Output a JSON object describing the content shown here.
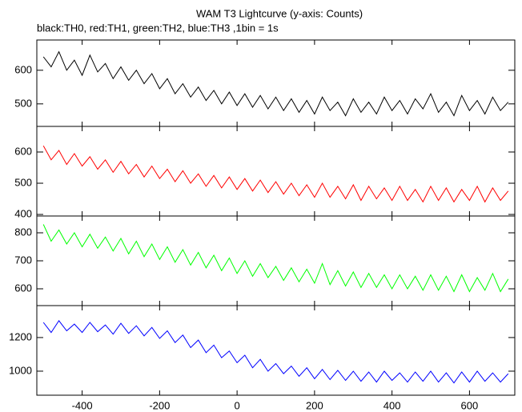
{
  "chart_data": [
    {
      "type": "line",
      "title": "WAM T3 Lightcurve (y-axis: Counts)",
      "subtitle": "black:TH0, red:TH1, green:TH2, blue:TH3 ,1bin = 1s",
      "color": "#000000",
      "x": [
        -500,
        -480,
        -460,
        -440,
        -420,
        -400,
        -380,
        -360,
        -340,
        -320,
        -300,
        -280,
        -260,
        -240,
        -220,
        -200,
        -180,
        -160,
        -140,
        -120,
        -100,
        -80,
        -60,
        -40,
        -20,
        0,
        20,
        40,
        60,
        80,
        100,
        120,
        140,
        160,
        180,
        200,
        220,
        240,
        260,
        280,
        300,
        320,
        340,
        360,
        380,
        400,
        420,
        440,
        460,
        480,
        500,
        520,
        540,
        560,
        580,
        600,
        620,
        640,
        660,
        680,
        700
      ],
      "values": [
        640,
        610,
        655,
        600,
        630,
        585,
        645,
        595,
        620,
        575,
        610,
        570,
        600,
        560,
        590,
        545,
        575,
        530,
        560,
        520,
        550,
        510,
        540,
        500,
        535,
        495,
        530,
        490,
        525,
        485,
        520,
        480,
        515,
        475,
        510,
        470,
        520,
        480,
        505,
        465,
        515,
        475,
        505,
        470,
        520,
        480,
        510,
        470,
        515,
        485,
        530,
        475,
        505,
        465,
        525,
        480,
        510,
        470,
        520,
        480,
        505
      ],
      "xlim": [
        -517,
        717
      ],
      "xticks": [
        -400,
        -200,
        0,
        200,
        400,
        600
      ],
      "ylim": [
        433,
        690
      ],
      "yticks": [
        500,
        600
      ]
    },
    {
      "type": "line",
      "color": "#ff0000",
      "x": [
        -500,
        -480,
        -460,
        -440,
        -420,
        -400,
        -380,
        -360,
        -340,
        -320,
        -300,
        -280,
        -260,
        -240,
        -220,
        -200,
        -180,
        -160,
        -140,
        -120,
        -100,
        -80,
        -60,
        -40,
        -20,
        0,
        20,
        40,
        60,
        80,
        100,
        120,
        140,
        160,
        180,
        200,
        220,
        240,
        260,
        280,
        300,
        320,
        340,
        360,
        380,
        400,
        420,
        440,
        460,
        480,
        500,
        520,
        540,
        560,
        580,
        600,
        620,
        640,
        660,
        680,
        700
      ],
      "values": [
        620,
        575,
        605,
        560,
        595,
        555,
        585,
        545,
        575,
        535,
        570,
        530,
        560,
        520,
        555,
        515,
        545,
        505,
        540,
        500,
        530,
        490,
        525,
        485,
        520,
        480,
        515,
        475,
        510,
        470,
        505,
        465,
        500,
        460,
        495,
        455,
        500,
        455,
        490,
        450,
        495,
        445,
        490,
        450,
        485,
        445,
        490,
        445,
        480,
        440,
        490,
        445,
        485,
        440,
        480,
        445,
        490,
        440,
        485,
        445,
        475
      ],
      "xlim": [
        -517,
        717
      ],
      "xticks": [
        -400,
        -200,
        0,
        200,
        400,
        600
      ],
      "ylim": [
        395,
        682
      ],
      "yticks": [
        400,
        500,
        600
      ]
    },
    {
      "type": "line",
      "color": "#00ff00",
      "x": [
        -500,
        -480,
        -460,
        -440,
        -420,
        -400,
        -380,
        -360,
        -340,
        -320,
        -300,
        -280,
        -260,
        -240,
        -220,
        -200,
        -180,
        -160,
        -140,
        -120,
        -100,
        -80,
        -60,
        -40,
        -20,
        0,
        20,
        40,
        60,
        80,
        100,
        120,
        140,
        160,
        180,
        200,
        220,
        240,
        260,
        280,
        300,
        320,
        340,
        360,
        380,
        400,
        420,
        440,
        460,
        480,
        500,
        520,
        540,
        560,
        580,
        600,
        620,
        640,
        660,
        680,
        700
      ],
      "values": [
        830,
        770,
        810,
        760,
        800,
        750,
        795,
        745,
        785,
        735,
        780,
        725,
        770,
        715,
        760,
        705,
        750,
        695,
        740,
        685,
        730,
        675,
        720,
        665,
        710,
        655,
        700,
        645,
        690,
        640,
        680,
        630,
        675,
        625,
        670,
        620,
        690,
        615,
        665,
        610,
        660,
        605,
        655,
        605,
        650,
        600,
        650,
        600,
        645,
        595,
        650,
        595,
        645,
        590,
        650,
        590,
        640,
        595,
        655,
        590,
        635
      ],
      "xlim": [
        -517,
        717
      ],
      "xticks": [
        -400,
        -200,
        0,
        200,
        400,
        600
      ],
      "ylim": [
        540,
        860
      ],
      "yticks": [
        600,
        700,
        800
      ]
    },
    {
      "type": "line",
      "color": "#0000ff",
      "x": [
        -500,
        -480,
        -460,
        -440,
        -420,
        -400,
        -380,
        -360,
        -340,
        -320,
        -300,
        -280,
        -260,
        -240,
        -220,
        -200,
        -180,
        -160,
        -140,
        -120,
        -100,
        -80,
        -60,
        -40,
        -20,
        0,
        20,
        40,
        60,
        80,
        100,
        120,
        140,
        160,
        180,
        200,
        220,
        240,
        260,
        280,
        300,
        320,
        340,
        360,
        380,
        400,
        420,
        440,
        460,
        480,
        500,
        520,
        540,
        560,
        580,
        600,
        620,
        640,
        660,
        680,
        700
      ],
      "values": [
        1290,
        1230,
        1300,
        1240,
        1280,
        1230,
        1290,
        1235,
        1275,
        1220,
        1285,
        1225,
        1270,
        1210,
        1260,
        1195,
        1240,
        1170,
        1215,
        1140,
        1185,
        1110,
        1155,
        1080,
        1120,
        1050,
        1095,
        1020,
        1070,
        1000,
        1045,
        985,
        1030,
        970,
        1020,
        955,
        1010,
        950,
        1005,
        945,
        1000,
        940,
        995,
        935,
        1000,
        945,
        990,
        935,
        995,
        940,
        1000,
        935,
        990,
        930,
        995,
        935,
        1000,
        940,
        990,
        935,
        985
      ],
      "xlim": [
        -517,
        717
      ],
      "xticks": [
        -400,
        -200,
        0,
        200,
        400,
        600
      ],
      "ylim": [
        857,
        1390
      ],
      "yticks": [
        1000,
        1200
      ]
    }
  ]
}
